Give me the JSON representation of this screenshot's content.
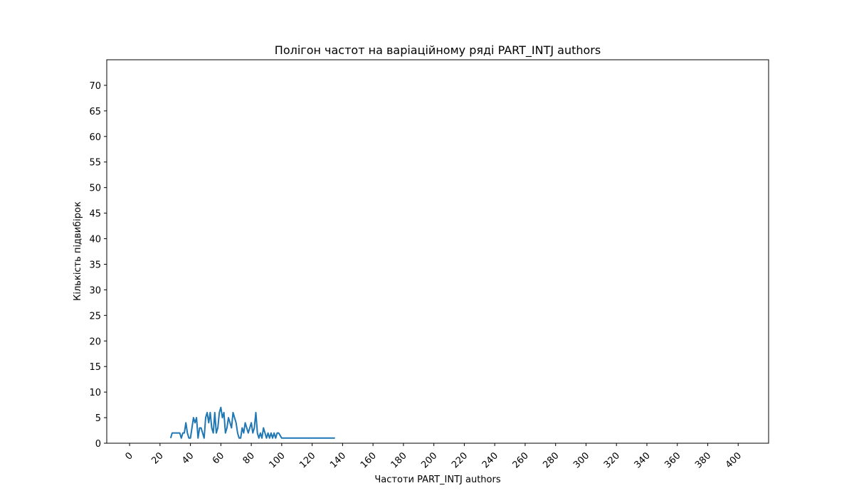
{
  "chart_data": {
    "type": "line",
    "title": "Полігон частот на варіаційному ряді PART_INTJ authors",
    "xlabel": "Частоти PART_INTJ authors",
    "ylabel": "Кількість підвибірок",
    "xlim": [
      -15,
      420
    ],
    "ylim": [
      0,
      75
    ],
    "x_ticks": [
      0,
      20,
      40,
      60,
      80,
      100,
      120,
      140,
      160,
      180,
      200,
      220,
      240,
      260,
      280,
      300,
      320,
      340,
      360,
      380,
      400
    ],
    "y_ticks": [
      0,
      5,
      10,
      15,
      20,
      25,
      30,
      35,
      40,
      45,
      50,
      55,
      60,
      65,
      70
    ],
    "grid": false,
    "color": "#1f77b4",
    "series": [
      {
        "x": [
          27,
          28,
          29,
          30,
          31,
          32,
          33,
          34,
          35,
          36,
          37,
          38,
          39,
          40,
          41,
          42,
          43,
          44,
          45,
          46,
          47,
          48,
          49,
          50,
          51,
          52,
          53,
          54,
          55,
          56,
          57,
          58,
          59,
          60,
          61,
          62,
          63,
          64,
          65,
          66,
          67,
          68,
          69,
          70,
          71,
          72,
          73,
          74,
          75,
          76,
          77,
          78,
          79,
          80,
          81,
          82,
          83,
          84,
          85,
          86,
          87,
          88,
          89,
          90,
          91,
          92,
          93,
          94,
          95,
          96,
          97,
          98,
          99,
          100,
          101,
          102,
          105,
          110,
          115,
          120,
          125,
          130,
          135
        ],
        "y": [
          1,
          2,
          2,
          2,
          2,
          2,
          2,
          1,
          2,
          2,
          4,
          2,
          1,
          1,
          3,
          5,
          4,
          5,
          1,
          3,
          3,
          2,
          1,
          5,
          6,
          4,
          6,
          3,
          2,
          6,
          2,
          3,
          6,
          7,
          5,
          6,
          2,
          3,
          5,
          4,
          3,
          6,
          5,
          4,
          2,
          1,
          1,
          3,
          2,
          4,
          3,
          2,
          3,
          4,
          2,
          3,
          6,
          2,
          1,
          2,
          1,
          3,
          2,
          1,
          2,
          1,
          2,
          1,
          2,
          1,
          2,
          2,
          1.5,
          1,
          1,
          1,
          1,
          1,
          1,
          1,
          1,
          1,
          1
        ]
      }
    ]
  }
}
